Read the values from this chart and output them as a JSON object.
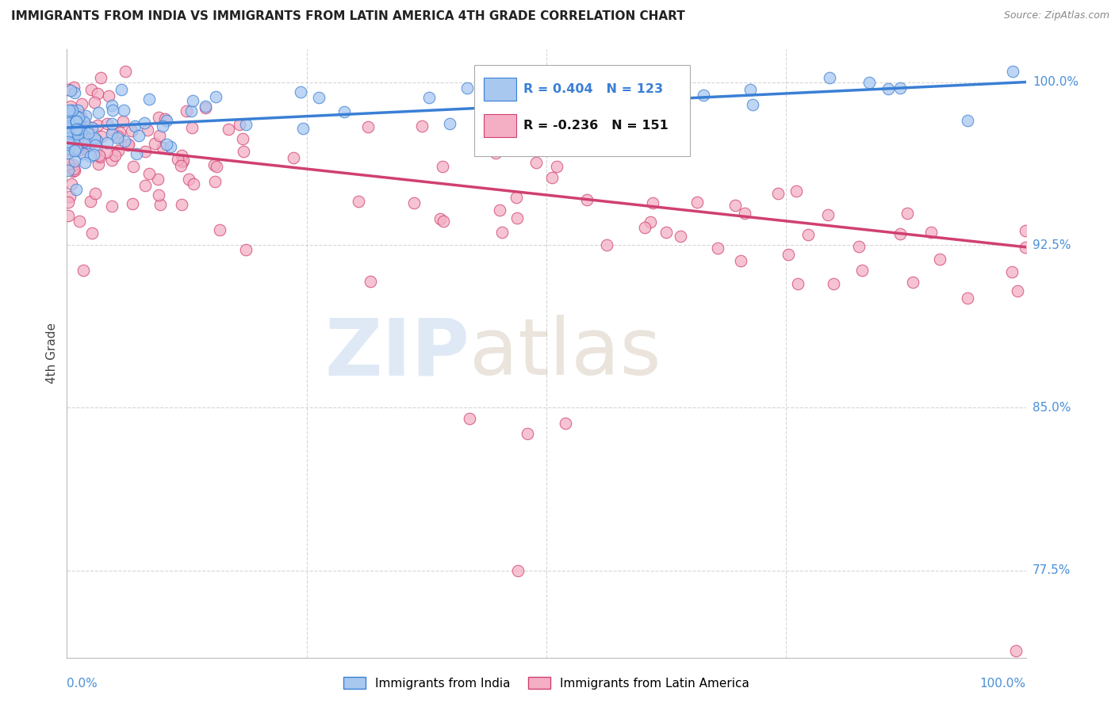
{
  "title": "IMMIGRANTS FROM INDIA VS IMMIGRANTS FROM LATIN AMERICA 4TH GRADE CORRELATION CHART",
  "source": "Source: ZipAtlas.com",
  "ylabel": "4th Grade",
  "legend_india": "Immigrants from India",
  "legend_latin": "Immigrants from Latin America",
  "r_india": 0.404,
  "n_india": 123,
  "r_latin": -0.236,
  "n_latin": 151,
  "color_india": "#a8c8f0",
  "color_latin": "#f4afc4",
  "line_color_india": "#3a7fd5",
  "line_color_latin": "#d04070",
  "background_color": "#ffffff",
  "grid_color": "#cccccc",
  "title_color": "#222222",
  "axis_label_color": "#4a90d9",
  "xmin": 0.0,
  "xmax": 1.0,
  "ymin": 0.735,
  "ymax": 1.015,
  "ytick_vals": [
    1.0,
    0.925,
    0.85,
    0.775
  ],
  "ytick_labels": [
    "100.0%",
    "92.5%",
    "85.0%",
    "77.5%"
  ],
  "india_line_x0": 0.0,
  "india_line_y0": 0.979,
  "india_line_x1": 1.0,
  "india_line_y1": 1.0,
  "latin_line_x0": 0.0,
  "latin_line_y0": 0.972,
  "latin_line_x1": 1.0,
  "latin_line_y1": 0.924
}
